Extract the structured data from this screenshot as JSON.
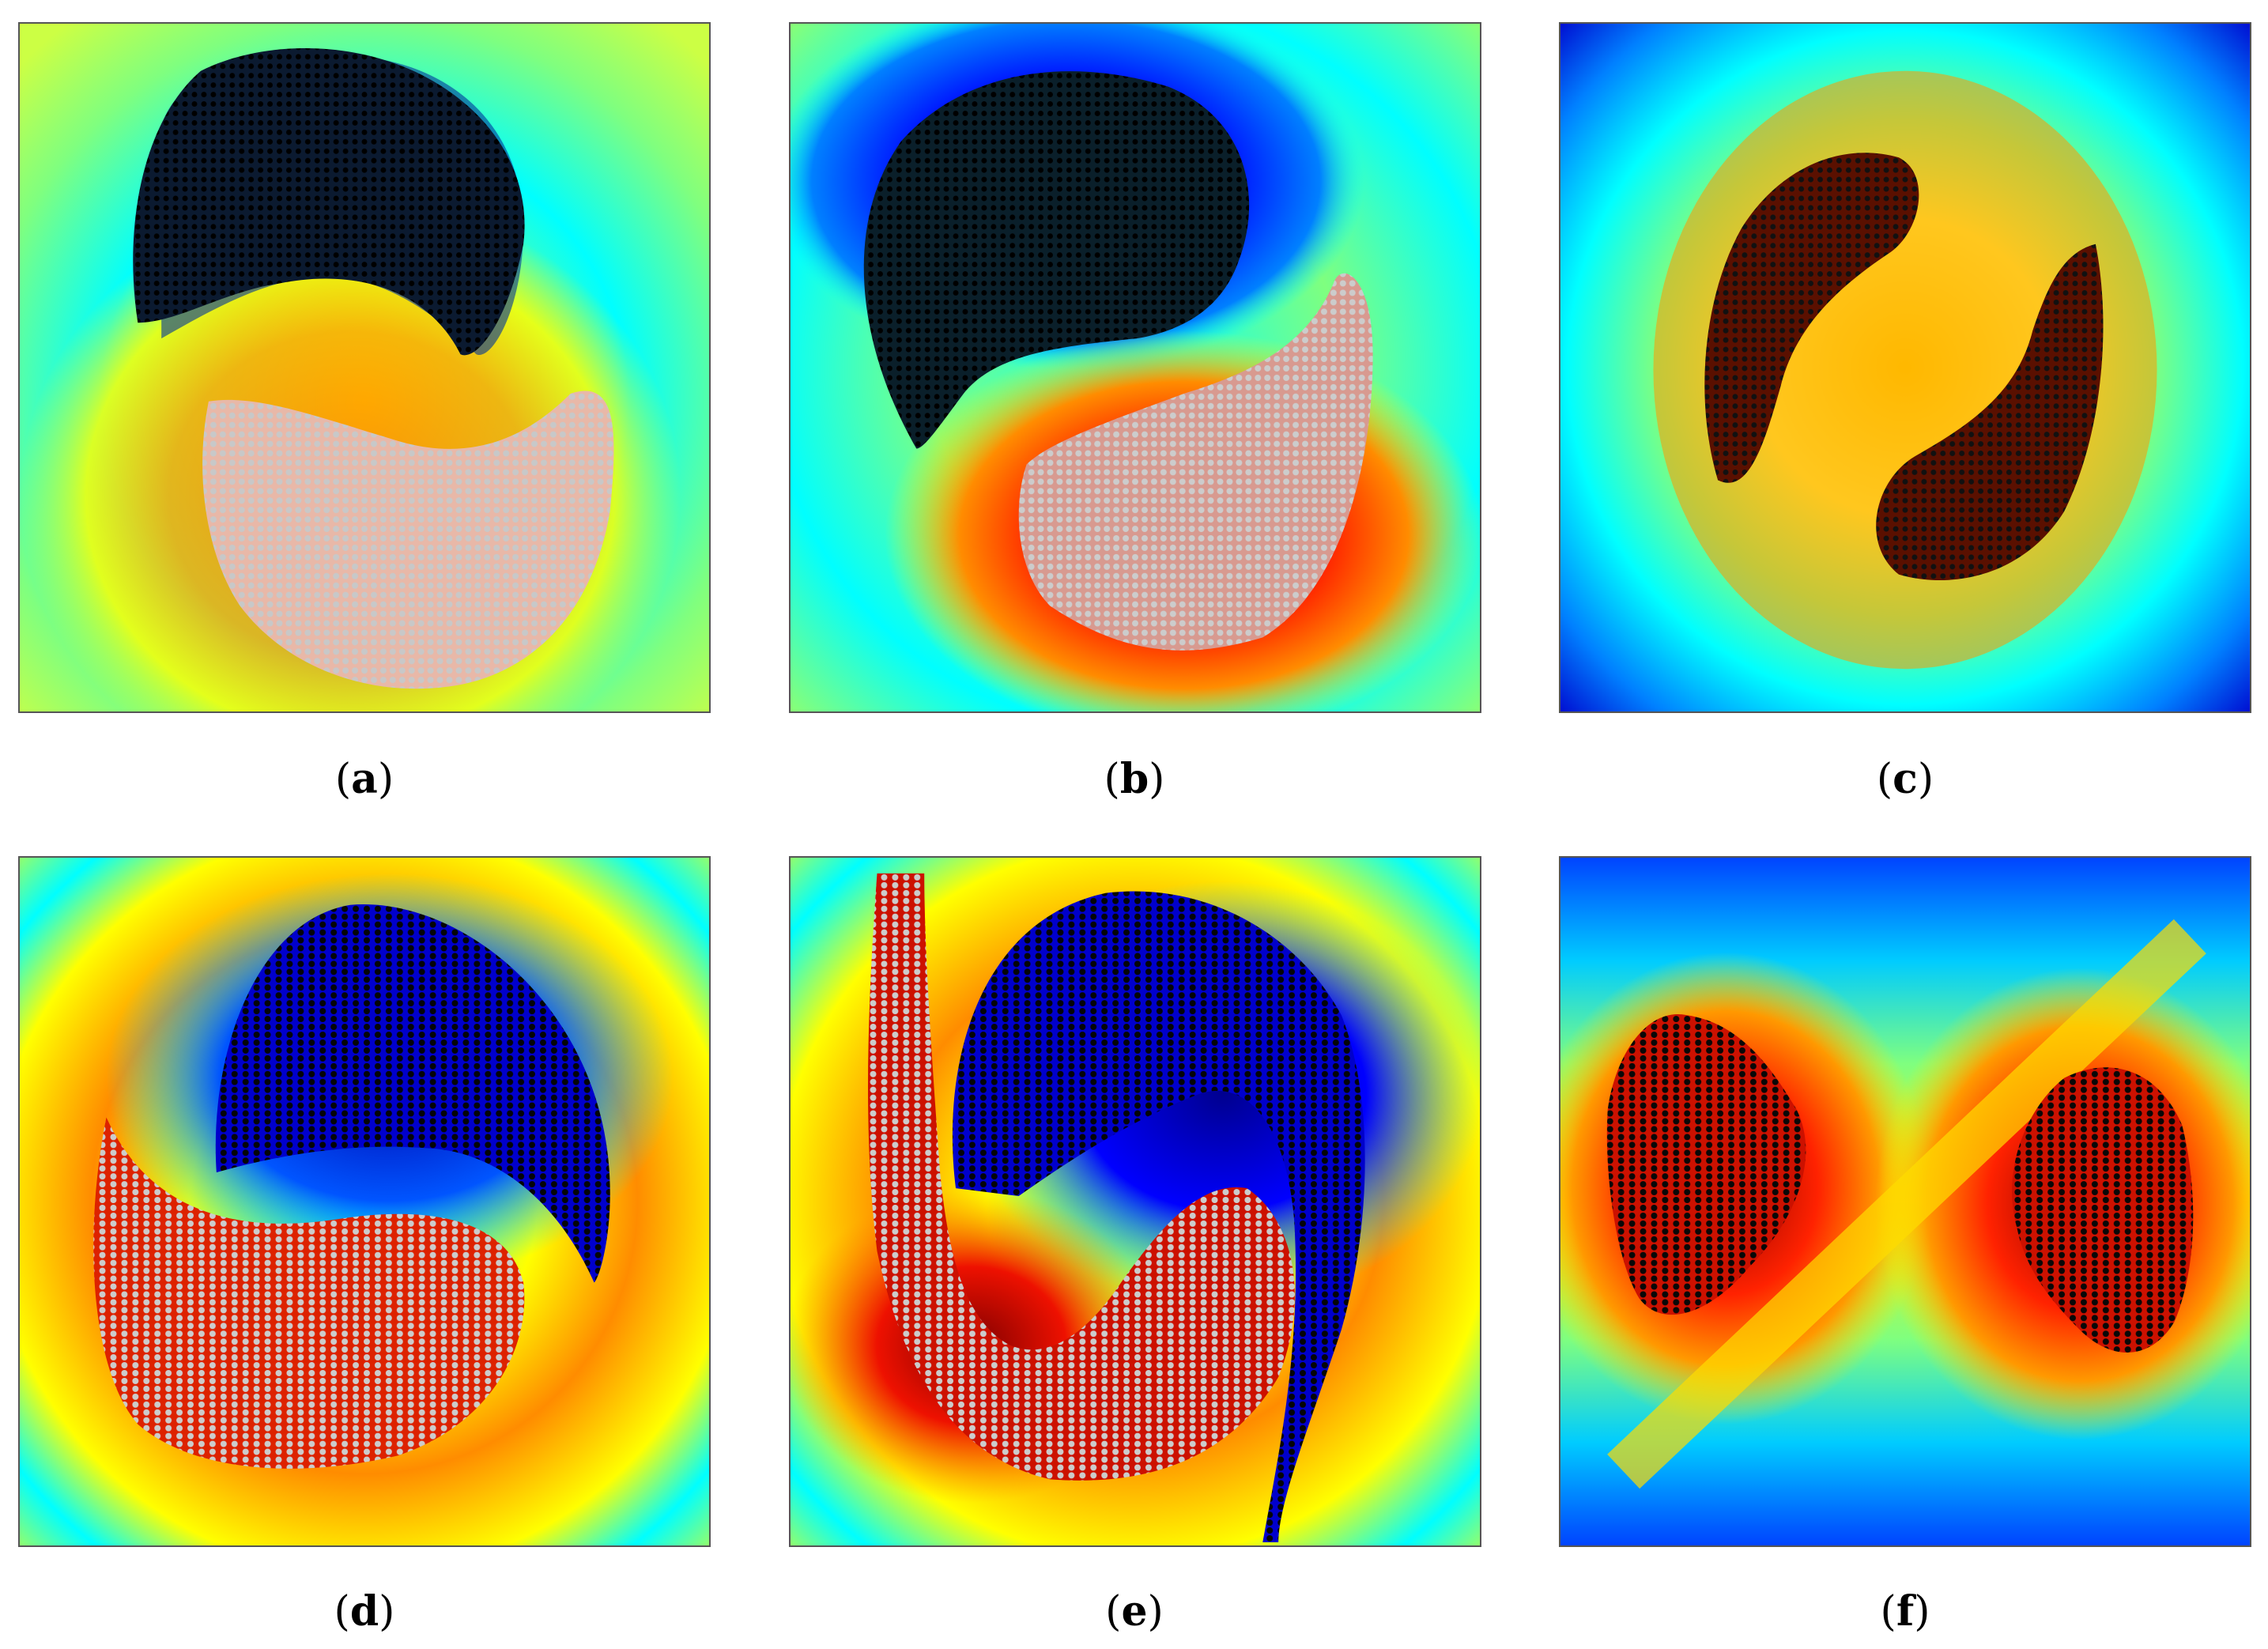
{
  "figure": {
    "panels": [
      {
        "id": "a",
        "caption": "a"
      },
      {
        "id": "b",
        "caption": "b"
      },
      {
        "id": "c",
        "caption": "c"
      },
      {
        "id": "d",
        "caption": "d"
      },
      {
        "id": "e",
        "caption": "e"
      },
      {
        "id": "f",
        "caption": "f"
      }
    ]
  },
  "colors": {
    "jet_dark_blue": "#00008f",
    "jet_blue": "#0000ff",
    "jet_cyan": "#00ffff",
    "jet_green": "#7fff7f",
    "jet_yellow": "#ffff00",
    "jet_orange": "#ff7f00",
    "jet_red": "#ff0000",
    "jet_dark_red": "#7f0000",
    "particles_dark": "#101010",
    "particles_light": "#c8c8c8"
  }
}
